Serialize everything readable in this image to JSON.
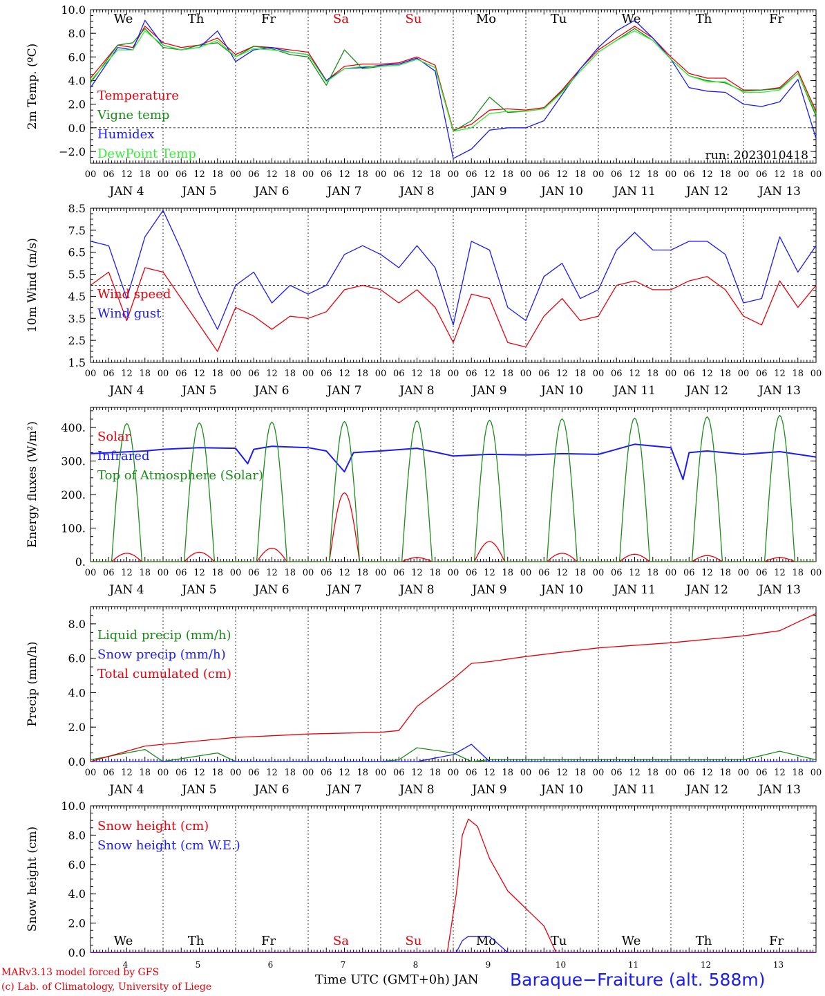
{
  "colors": {
    "red": "#e8000b",
    "green": "#1a8c1a",
    "blue": "#1a1aff",
    "lightgreen": "#33ee33",
    "purple": "#7a2a9a",
    "axis": "#000000"
  },
  "time_axis": {
    "hour_ticks": [
      "00",
      "06",
      "12",
      "18"
    ],
    "day_names": [
      "We",
      "Th",
      "Fr",
      "Sa",
      "Su",
      "Mo",
      "Tu",
      "We",
      "Th",
      "Fr"
    ],
    "weekend_days": [
      "Sa",
      "Su"
    ],
    "date_labels": [
      "JAN  4",
      "JAN  5",
      "JAN  6",
      "JAN  7",
      "JAN  8",
      "JAN  9",
      "JAN 10",
      "JAN 11",
      "JAN 12",
      "JAN 13"
    ],
    "bottom_day_numbers": [
      "4",
      "5",
      "6",
      "7",
      "8",
      "9",
      "10",
      "11",
      "12",
      "13"
    ],
    "final_tick": "00"
  },
  "footer": {
    "credit_line1": "MARv3.13 model forced by GFS",
    "credit_line2": "(c) Lab. of Climatology, University of Liege",
    "x_label": "Time UTC (GMT+0h) JAN",
    "station": "Baraque−Fraiture (alt. 588m)"
  },
  "chart_data": [
    {
      "type": "line",
      "ylabel": "2m Temp. (ºC)",
      "ylim": [
        -3,
        10
      ],
      "yticks": [
        "−2.0",
        "0.0",
        "2.0",
        "4.0",
        "6.0",
        "8.0",
        "10.0"
      ],
      "ytick_values": [
        -2,
        0,
        2,
        4,
        6,
        8,
        10
      ],
      "reference_line": 0,
      "annotation": "run: 2023010418",
      "x": [
        "2023-01-04T00",
        "2023-01-04T09",
        "2023-01-04T14",
        "2023-01-04T18",
        "2023-01-05T00",
        "2023-01-05T06",
        "2023-01-05T12",
        "2023-01-05T18",
        "2023-01-06T00",
        "2023-01-06T06",
        "2023-01-06T12",
        "2023-01-06T18",
        "2023-01-07T00",
        "2023-01-07T06",
        "2023-01-07T12",
        "2023-01-07T18",
        "2023-01-08T00",
        "2023-01-08T06",
        "2023-01-08T12",
        "2023-01-08T18",
        "2023-01-09T00",
        "2023-01-09T06",
        "2023-01-09T12",
        "2023-01-09T18",
        "2023-01-10T00",
        "2023-01-10T06",
        "2023-01-10T12",
        "2023-01-10T18",
        "2023-01-11T00",
        "2023-01-11T06",
        "2023-01-11T12",
        "2023-01-11T18",
        "2023-01-12T00",
        "2023-01-12T06",
        "2023-01-12T12",
        "2023-01-12T18",
        "2023-01-13T00",
        "2023-01-13T06",
        "2023-01-13T12",
        "2023-01-13T18",
        "2023-01-14T00"
      ],
      "series": [
        {
          "name": "Temperature",
          "color": "#e8000b",
          "values": [
            4.2,
            7.0,
            6.8,
            8.6,
            7.2,
            6.8,
            7.0,
            7.6,
            6.2,
            6.9,
            6.8,
            6.6,
            6.4,
            4.0,
            5.2,
            5.4,
            5.4,
            5.5,
            6.0,
            5.3,
            -0.2,
            0.3,
            1.5,
            1.6,
            1.5,
            1.7,
            3.2,
            5.0,
            6.6,
            7.6,
            8.6,
            7.6,
            6.0,
            4.6,
            4.2,
            4.2,
            3.2,
            3.2,
            3.4,
            4.8,
            1.4
          ]
        },
        {
          "name": "Vigne temp",
          "color": "#1a8c1a",
          "values": [
            3.8,
            7.0,
            7.2,
            8.4,
            6.8,
            6.6,
            7.0,
            7.2,
            6.0,
            6.9,
            6.7,
            6.2,
            6.0,
            3.6,
            6.6,
            5.0,
            5.2,
            5.3,
            5.8,
            5.1,
            -0.3,
            0.6,
            2.6,
            1.3,
            1.4,
            1.6,
            3.1,
            4.8,
            6.4,
            7.4,
            8.4,
            7.4,
            5.8,
            4.4,
            4.0,
            3.8,
            3.1,
            3.2,
            3.3,
            4.6,
            1.0
          ]
        },
        {
          "name": "Humidex",
          "color": "#1a1aff",
          "values": [
            3.4,
            6.8,
            6.6,
            9.1,
            7.0,
            6.6,
            6.8,
            8.2,
            5.6,
            6.6,
            6.8,
            6.4,
            6.2,
            4.0,
            5.0,
            5.1,
            5.3,
            5.4,
            5.9,
            4.8,
            -2.6,
            -1.8,
            -0.2,
            0.0,
            0.0,
            0.6,
            2.8,
            5.0,
            6.8,
            8.2,
            9.1,
            7.6,
            5.8,
            3.4,
            3.1,
            3.0,
            2.0,
            1.8,
            2.2,
            4.1,
            -0.9
          ]
        },
        {
          "name": "DewPoint Temp",
          "color": "#33ee33",
          "values": [
            4.0,
            6.6,
            6.6,
            8.2,
            7.0,
            6.6,
            6.8,
            7.4,
            6.0,
            6.7,
            6.6,
            6.4,
            6.2,
            3.9,
            5.0,
            5.2,
            5.2,
            5.3,
            5.8,
            5.1,
            -0.3,
            0.0,
            1.2,
            1.4,
            1.4,
            1.6,
            3.0,
            4.8,
            6.4,
            7.4,
            8.2,
            7.4,
            5.8,
            4.4,
            3.9,
            3.9,
            3.0,
            3.0,
            3.2,
            4.6,
            1.2
          ]
        }
      ]
    },
    {
      "type": "line",
      "ylabel": "10m Wind (m/s)",
      "ylim": [
        1.5,
        8.5
      ],
      "yticks": [
        "1.5",
        "2.5",
        "3.5",
        "4.5",
        "5.5",
        "6.5",
        "7.5",
        "8.5"
      ],
      "ytick_values": [
        1.5,
        2.5,
        3.5,
        4.5,
        5.5,
        6.5,
        7.5,
        8.5
      ],
      "reference_line": 5.0,
      "x": [
        "2023-01-04T00",
        "2023-01-04T06",
        "2023-01-04T12",
        "2023-01-04T18",
        "2023-01-05T00",
        "2023-01-05T06",
        "2023-01-05T12",
        "2023-01-05T18",
        "2023-01-06T00",
        "2023-01-06T06",
        "2023-01-06T12",
        "2023-01-06T18",
        "2023-01-07T00",
        "2023-01-07T06",
        "2023-01-07T12",
        "2023-01-07T18",
        "2023-01-08T00",
        "2023-01-08T06",
        "2023-01-08T12",
        "2023-01-08T18",
        "2023-01-09T00",
        "2023-01-09T06",
        "2023-01-09T12",
        "2023-01-09T18",
        "2023-01-10T00",
        "2023-01-10T06",
        "2023-01-10T12",
        "2023-01-10T18",
        "2023-01-11T00",
        "2023-01-11T06",
        "2023-01-11T12",
        "2023-01-11T18",
        "2023-01-12T00",
        "2023-01-12T06",
        "2023-01-12T12",
        "2023-01-12T18",
        "2023-01-13T00",
        "2023-01-13T06",
        "2023-01-13T12",
        "2023-01-13T18",
        "2023-01-14T00"
      ],
      "series": [
        {
          "name": "Wind speed",
          "color": "#e8000b",
          "values": [
            5.0,
            5.6,
            3.4,
            5.8,
            5.6,
            4.4,
            3.2,
            2.0,
            4.0,
            3.6,
            3.0,
            3.6,
            3.5,
            3.8,
            4.8,
            5.0,
            4.8,
            4.2,
            4.8,
            4.0,
            2.4,
            4.6,
            4.4,
            2.4,
            2.2,
            3.6,
            4.4,
            3.4,
            3.6,
            5.0,
            5.2,
            4.8,
            4.8,
            5.2,
            5.4,
            4.8,
            3.6,
            3.2,
            5.2,
            4.0,
            5.0
          ]
        },
        {
          "name": "Wind gust",
          "color": "#1a1aff",
          "values": [
            7.0,
            6.8,
            4.4,
            7.2,
            8.4,
            6.6,
            4.6,
            3.0,
            5.0,
            5.6,
            4.2,
            5.0,
            4.6,
            5.0,
            6.4,
            6.8,
            6.4,
            5.8,
            6.8,
            5.8,
            3.2,
            7.0,
            6.6,
            4.0,
            3.4,
            5.4,
            6.0,
            4.4,
            4.8,
            6.6,
            7.4,
            6.6,
            6.6,
            7.0,
            7.0,
            6.4,
            4.2,
            4.4,
            7.2,
            5.6,
            6.8
          ]
        }
      ]
    },
    {
      "type": "line",
      "ylabel": "Energy fluxes (W/m²)",
      "ylim": [
        0,
        460
      ],
      "yticks": [
        "0.",
        "100.",
        "200.",
        "300.",
        "400."
      ],
      "ytick_values": [
        0,
        100,
        200,
        300,
        400
      ],
      "series": [
        {
          "name": "Solar",
          "color": "#e8000b",
          "daily_peak": [
            25,
            28,
            40,
            205,
            12,
            60,
            25,
            22,
            18,
            12
          ]
        },
        {
          "name": "Infrared",
          "color": "#1a1aff",
          "x": [
            "2023-01-04T00",
            "2023-01-04T18",
            "2023-01-05T00",
            "2023-01-05T12",
            "2023-01-06T00",
            "2023-01-06T04",
            "2023-01-06T06",
            "2023-01-06T12",
            "2023-01-07T00",
            "2023-01-07T06",
            "2023-01-07T12",
            "2023-01-07T15",
            "2023-01-08T00",
            "2023-01-08T12",
            "2023-01-09T00",
            "2023-01-09T12",
            "2023-01-10T00",
            "2023-01-10T12",
            "2023-01-11T00",
            "2023-01-11T12",
            "2023-01-12T00",
            "2023-01-12T04",
            "2023-01-12T06",
            "2023-01-12T12",
            "2023-01-13T00",
            "2023-01-13T12",
            "2023-01-14T00"
          ],
          "values": [
            322,
            330,
            335,
            340,
            338,
            292,
            335,
            344,
            340,
            330,
            268,
            325,
            330,
            338,
            315,
            320,
            318,
            322,
            320,
            350,
            340,
            245,
            325,
            330,
            320,
            328,
            312
          ]
        },
        {
          "name": "Top of Atmosphere (Solar)",
          "color": "#1a8c1a",
          "daily_peak": [
            412,
            414,
            416,
            418,
            420,
            422,
            426,
            428,
            432,
            436
          ]
        }
      ]
    },
    {
      "type": "line",
      "ylabel": "Precip (mm/h)",
      "ylim": [
        0,
        9
      ],
      "yticks": [
        "0.0",
        "2.0",
        "4.0",
        "6.0",
        "8.0"
      ],
      "ytick_values": [
        0,
        2,
        4,
        6,
        8
      ],
      "x": [
        "2023-01-04T00",
        "2023-01-04T18",
        "2023-01-05T00",
        "2023-01-05T18",
        "2023-01-06T00",
        "2023-01-07T00",
        "2023-01-08T00",
        "2023-01-08T06",
        "2023-01-08T12",
        "2023-01-09T00",
        "2023-01-09T06",
        "2023-01-09T12",
        "2023-01-10T00",
        "2023-01-11T00",
        "2023-01-12T00",
        "2023-01-13T00",
        "2023-01-13T12",
        "2023-01-14T00"
      ],
      "series": [
        {
          "name": "Liquid precip (mm/h)",
          "color": "#1a8c1a",
          "values": [
            0.1,
            0.7,
            0.0,
            0.5,
            0.0,
            0.0,
            0.0,
            0.1,
            0.8,
            0.5,
            0.0,
            0.1,
            0.1,
            0.1,
            0.1,
            0.1,
            0.6,
            0.1
          ]
        },
        {
          "name": "Snow precip (mm/h)",
          "color": "#1a1aff",
          "values": [
            0.0,
            0.0,
            0.0,
            0.0,
            0.0,
            0.0,
            0.0,
            0.0,
            0.0,
            0.4,
            1.0,
            0.0,
            0.0,
            0.0,
            0.0,
            0.0,
            0.0,
            0.0
          ]
        },
        {
          "name": "Total cumulated (cm)",
          "color": "#e8000b",
          "values": [
            0.0,
            0.9,
            1.0,
            1.3,
            1.4,
            1.6,
            1.7,
            1.8,
            3.2,
            4.8,
            5.7,
            5.8,
            6.1,
            6.6,
            6.9,
            7.3,
            7.6,
            8.6
          ]
        }
      ]
    },
    {
      "type": "line",
      "ylabel": "Snow height (cm)",
      "ylim": [
        0,
        10
      ],
      "yticks": [
        "0.0",
        "2.0",
        "4.0",
        "6.0",
        "8.0",
        "10.0"
      ],
      "ytick_values": [
        0,
        2,
        4,
        6,
        8,
        10
      ],
      "x": [
        "2023-01-04T00",
        "2023-01-08T22",
        "2023-01-09T01",
        "2023-01-09T03",
        "2023-01-09T05",
        "2023-01-09T08",
        "2023-01-09T12",
        "2023-01-09T18",
        "2023-01-10T00",
        "2023-01-10T06",
        "2023-01-10T10",
        "2023-01-14T00"
      ],
      "series": [
        {
          "name": "Snow height (cm)",
          "color": "#e8000b",
          "values": [
            0,
            0,
            4.0,
            8.0,
            9.1,
            8.6,
            6.4,
            4.2,
            3.0,
            1.8,
            0,
            0
          ]
        },
        {
          "name": "Snow height (cm W.E.)",
          "color": "#1a1aff",
          "values": [
            0,
            0,
            0,
            0.8,
            1.1,
            1.1,
            1.1,
            0,
            0,
            0,
            0,
            0
          ]
        }
      ]
    }
  ]
}
